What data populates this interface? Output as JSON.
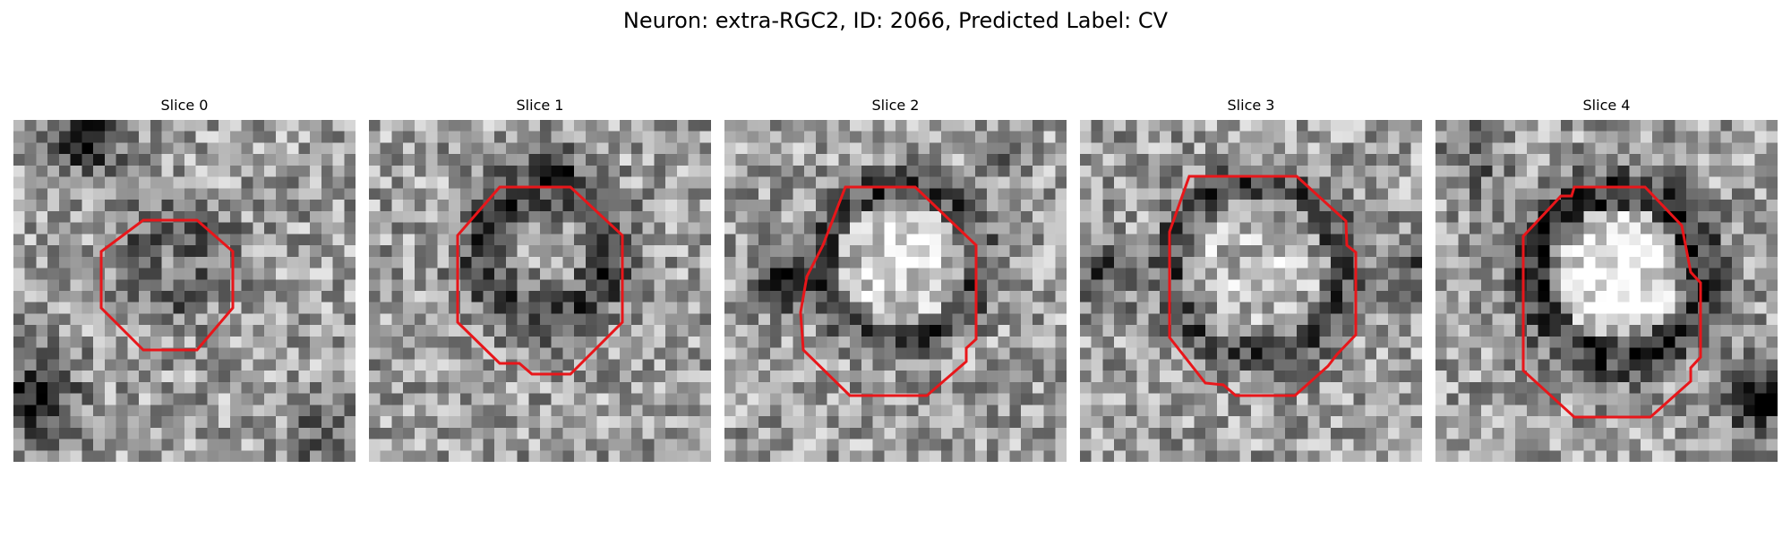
{
  "figure": {
    "title": "Neuron: extra-RGC2, ID: 2066, Predicted Label: CV"
  },
  "panels": [
    {
      "title": "Slice 0"
    },
    {
      "title": "Slice 1"
    },
    {
      "title": "Slice 2"
    },
    {
      "title": "Slice 3"
    },
    {
      "title": "Slice 4"
    }
  ],
  "colors": {
    "outline": "#e8161a",
    "background": "#ffffff"
  }
}
